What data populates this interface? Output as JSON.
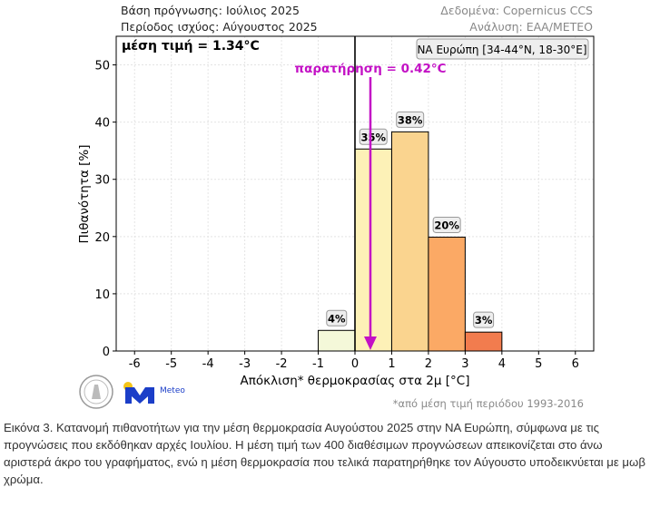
{
  "header": {
    "base": "Βάση πρόγνωσης: Ιούλιος 2025",
    "period": "Περίοδος ισχύος: Αύγουστος 2025",
    "data_src": "Δεδομένα: Copernicus CCS",
    "analysis": "Ανάλυση: ΕΑΑ/METEO"
  },
  "logo": {
    "meteo": "Meteo"
  },
  "footnote": "*από μέση τιμή περιόδου 1993-2016",
  "caption": "Εικόνα 3. Κατανομή πιθανοτήτων για την μέση θερμοκρασία Αυγούστου 2025 στην ΝΑ Ευρώπη, σύμφωνα με τις προγνώσεις που εκδόθηκαν αρχές Ιουλίου. Η μέση τιμή των 400 διαθέσιμων προγνώσεων απεικονίζεται στο άνω αριστερά άκρο του γραφήματος, ενώ η μέση θερμοκρασία που τελικά παρατηρήθηκε τον Αύγουστο υποδεικνύεται με μωβ χρώμα.",
  "chart_data": {
    "type": "bar",
    "bins": [
      [
        -1,
        0
      ],
      [
        0,
        1
      ],
      [
        1,
        2
      ],
      [
        2,
        3
      ],
      [
        3,
        4
      ]
    ],
    "values": [
      3.6,
      35.3,
      38.3,
      19.9,
      3.3
    ],
    "labels": [
      "4%",
      "35%",
      "38%",
      "20%",
      "3%"
    ],
    "colors": [
      "#f4f8d9",
      "#fdf1b7",
      "#fad48f",
      "#fba965",
      "#f27c4e"
    ],
    "xlabel": "Απόκλιση* θερμοκρασίας στα 2μ [°C]",
    "ylabel": "Πιθανότητα [%]",
    "xlim": [
      -6.5,
      6.5
    ],
    "ylim": [
      0,
      55
    ],
    "xticks": [
      -6,
      -5,
      -4,
      -3,
      -2,
      -1,
      0,
      1,
      2,
      3,
      4,
      5,
      6
    ],
    "yticks": [
      0,
      10,
      20,
      30,
      40,
      50
    ],
    "grid": true,
    "mean_label": "μέση τιμή = 1.34°C",
    "mean": 1.34,
    "observation": 0.42,
    "observation_label": "παρατήρηση = 0.42°C",
    "observation_color": "#c311c5",
    "region_label": "ΝΑ Ευρώπη [34-44°N, 18-30°E]"
  }
}
